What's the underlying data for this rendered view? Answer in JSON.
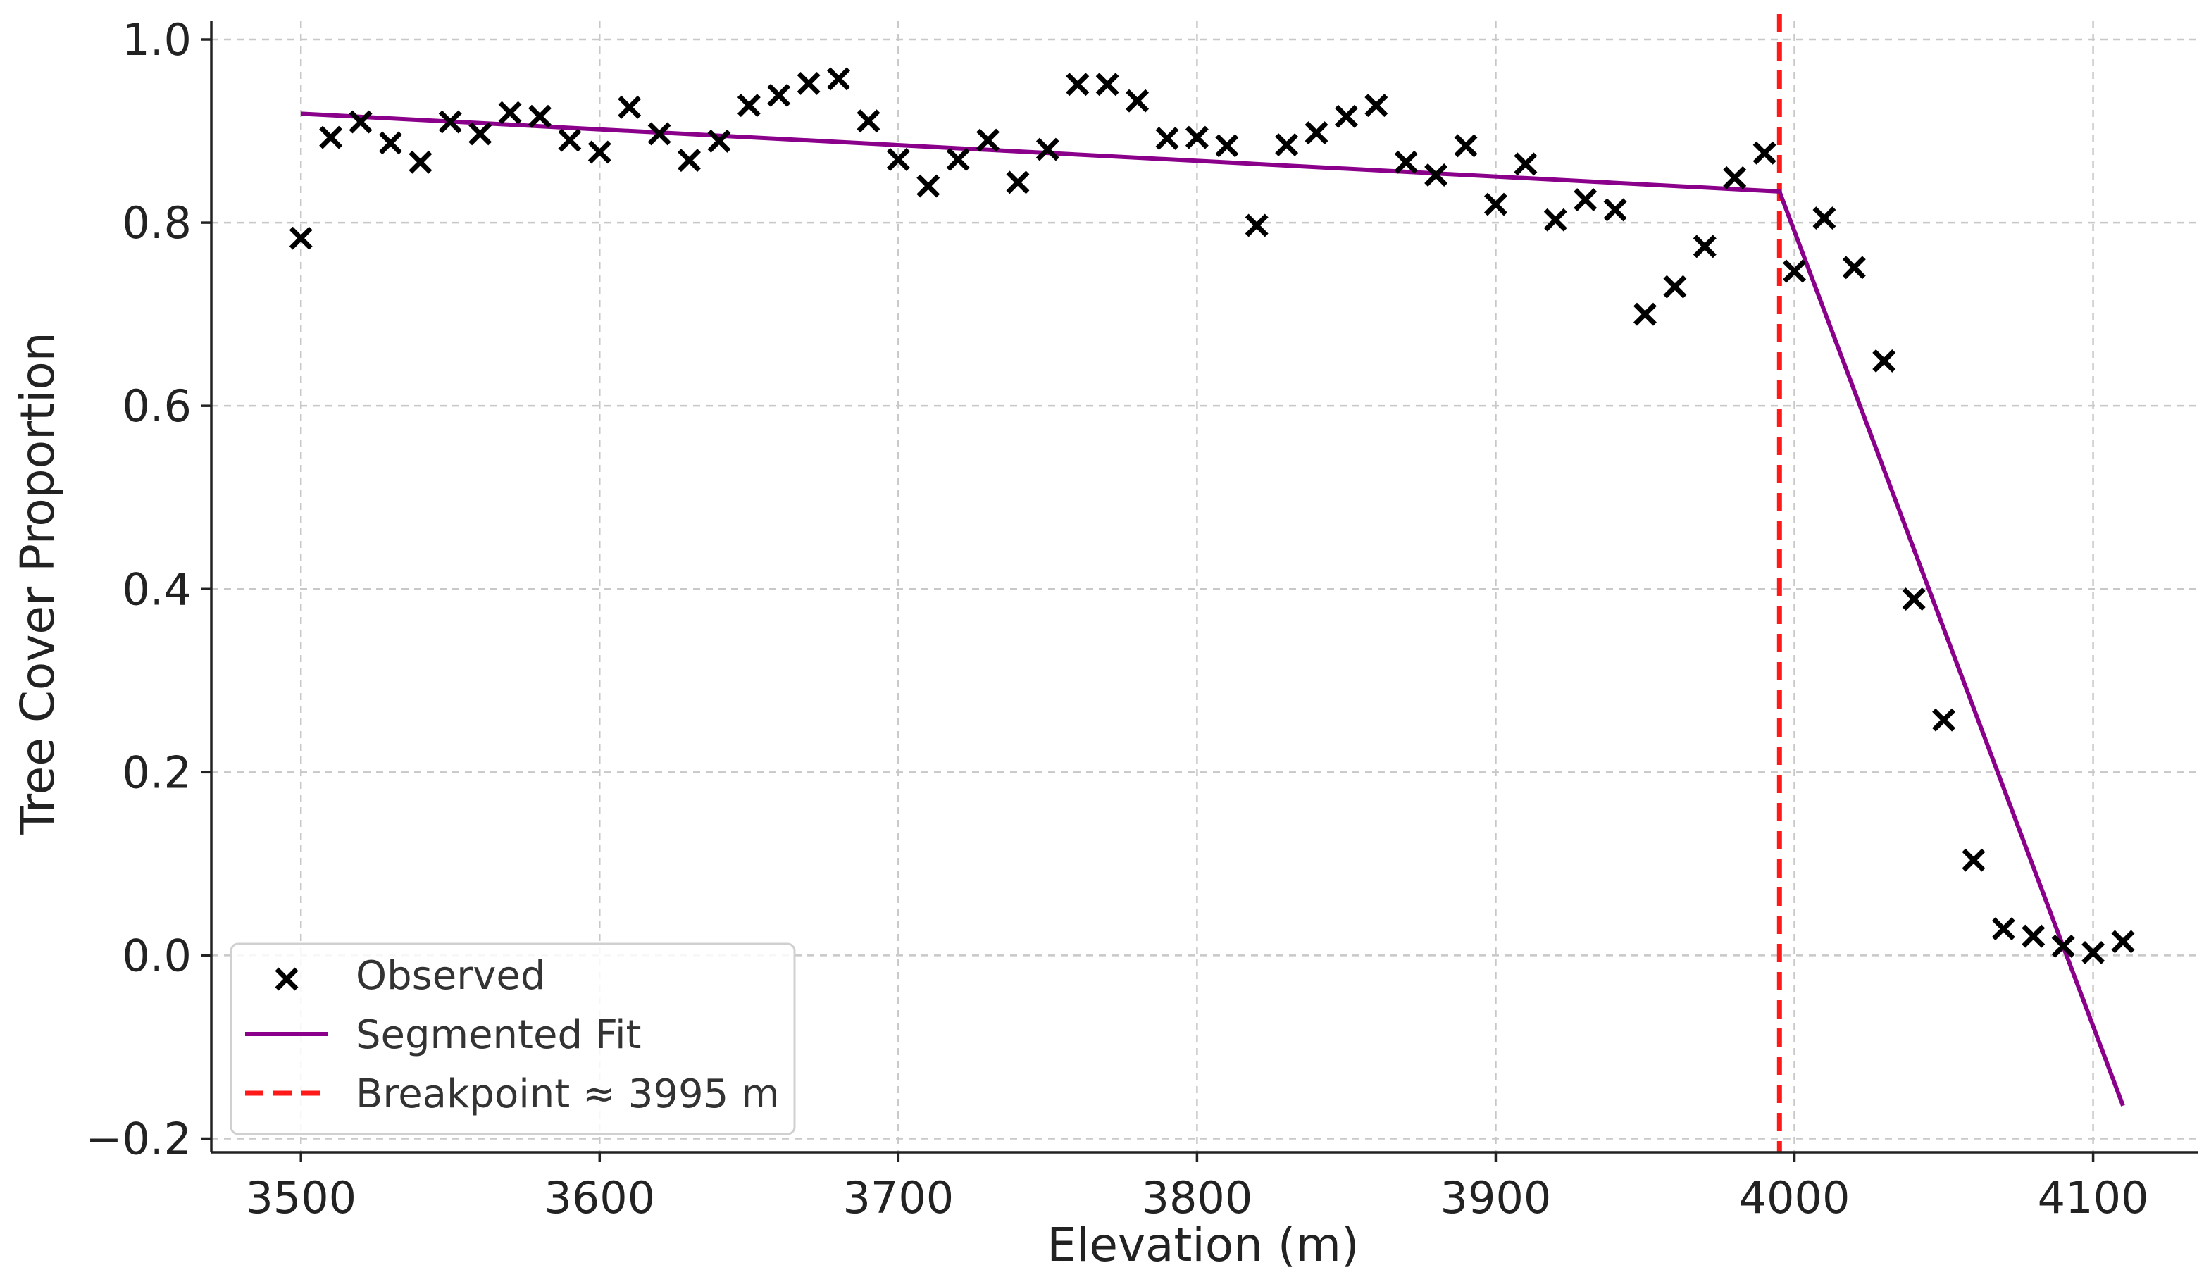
{
  "chart_data": {
    "type": "scatter",
    "title": "",
    "xlabel": "Elevation (m)",
    "ylabel": "Tree Cover Proportion",
    "xlim": [
      3470,
      4135
    ],
    "ylim": [
      -0.215,
      1.02
    ],
    "grid": true,
    "xticks": [
      3500,
      3600,
      3700,
      3800,
      3900,
      4000,
      4100
    ],
    "yticks": [
      -0.2,
      0.0,
      0.2,
      0.4,
      0.6,
      0.8,
      1.0
    ],
    "xtick_labels": [
      "3500",
      "3600",
      "3700",
      "3800",
      "3900",
      "4000",
      "4100"
    ],
    "ytick_labels": [
      "−0.2",
      "0.0",
      "0.2",
      "0.4",
      "0.6",
      "0.8",
      "1.0"
    ],
    "legend_position": "lower-left",
    "series": [
      {
        "name": "Observed",
        "kind": "scatter",
        "marker": "x",
        "color": "#000000",
        "x": [
          3500,
          3510,
          3520,
          3530,
          3540,
          3550,
          3560,
          3570,
          3580,
          3590,
          3600,
          3610,
          3620,
          3630,
          3640,
          3650,
          3660,
          3670,
          3680,
          3690,
          3700,
          3710,
          3720,
          3730,
          3740,
          3750,
          3760,
          3770,
          3780,
          3790,
          3800,
          3810,
          3820,
          3830,
          3840,
          3850,
          3860,
          3870,
          3880,
          3890,
          3900,
          3910,
          3920,
          3930,
          3940,
          3950,
          3960,
          3970,
          3980,
          3990,
          4000,
          4010,
          4020,
          4030,
          4040,
          4050,
          4060,
          4070,
          4080,
          4090,
          4100,
          4110
        ],
        "y": [
          0.783,
          0.893,
          0.91,
          0.887,
          0.866,
          0.91,
          0.897,
          0.92,
          0.916,
          0.89,
          0.877,
          0.926,
          0.897,
          0.868,
          0.889,
          0.928,
          0.939,
          0.952,
          0.957,
          0.911,
          0.869,
          0.84,
          0.869,
          0.89,
          0.844,
          0.88,
          0.951,
          0.951,
          0.933,
          0.892,
          0.893,
          0.884,
          0.797,
          0.885,
          0.898,
          0.916,
          0.928,
          0.866,
          0.852,
          0.884,
          0.82,
          0.864,
          0.803,
          0.825,
          0.814,
          0.7,
          0.73,
          0.774,
          0.849,
          0.876,
          0.747,
          0.805,
          0.751,
          0.649,
          0.389,
          0.257,
          0.104,
          0.029,
          0.021,
          0.01,
          0.003,
          0.015
        ]
      },
      {
        "name": "Segmented Fit",
        "kind": "line",
        "color": "#8b008b",
        "x": [
          3500,
          3995,
          4110
        ],
        "y": [
          0.919,
          0.834,
          -0.164
        ]
      }
    ],
    "breakpoint": {
      "name": "Breakpoint ≈ 3995 m",
      "x": 3995,
      "color": "#ff1a1a",
      "style": "dashed"
    }
  }
}
